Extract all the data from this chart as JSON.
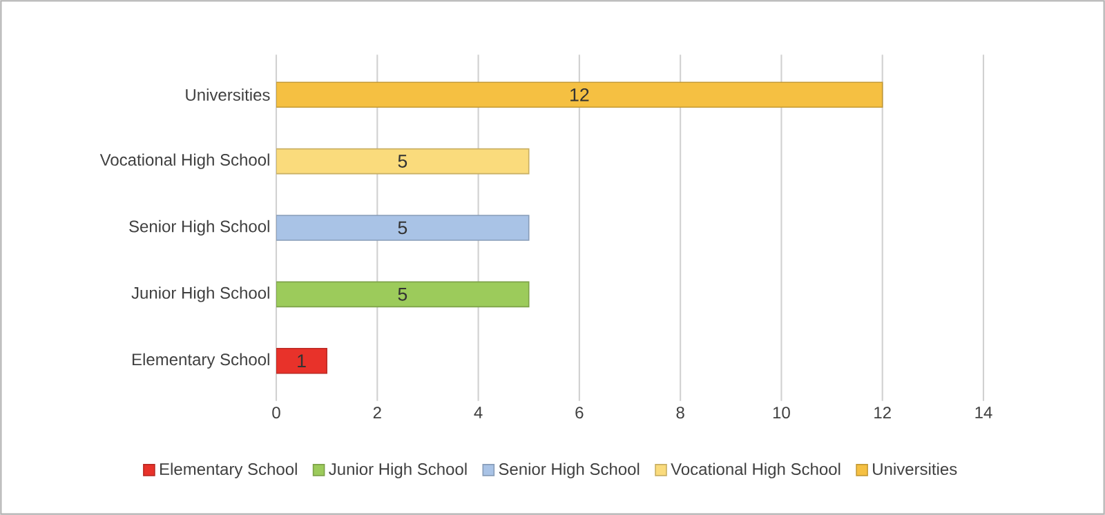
{
  "chart_data": {
    "type": "bar",
    "orientation": "horizontal",
    "categories": [
      "Universities",
      "Vocational High School",
      "Senior High School",
      "Junior High School",
      "Elementary School"
    ],
    "series": [
      {
        "name": "Elementary School",
        "color": "#e8322a",
        "values": [
          null,
          null,
          null,
          null,
          1
        ]
      },
      {
        "name": "Junior High School",
        "color": "#9ccb5b",
        "values": [
          null,
          null,
          null,
          5,
          null
        ]
      },
      {
        "name": "Senior High School",
        "color": "#a9c3e6",
        "values": [
          null,
          null,
          5,
          null,
          null
        ]
      },
      {
        "name": "Vocational High School",
        "color": "#fadb7c",
        "values": [
          null,
          5,
          null,
          null,
          null
        ]
      },
      {
        "name": "Universities",
        "color": "#f5c042",
        "values": [
          12,
          null,
          null,
          null,
          null
        ]
      }
    ],
    "xlim": [
      0,
      14
    ],
    "xticks": [
      0,
      2,
      4,
      6,
      8,
      10,
      12,
      14
    ],
    "grid": "x",
    "legend": "bottom",
    "data_labels": true
  }
}
